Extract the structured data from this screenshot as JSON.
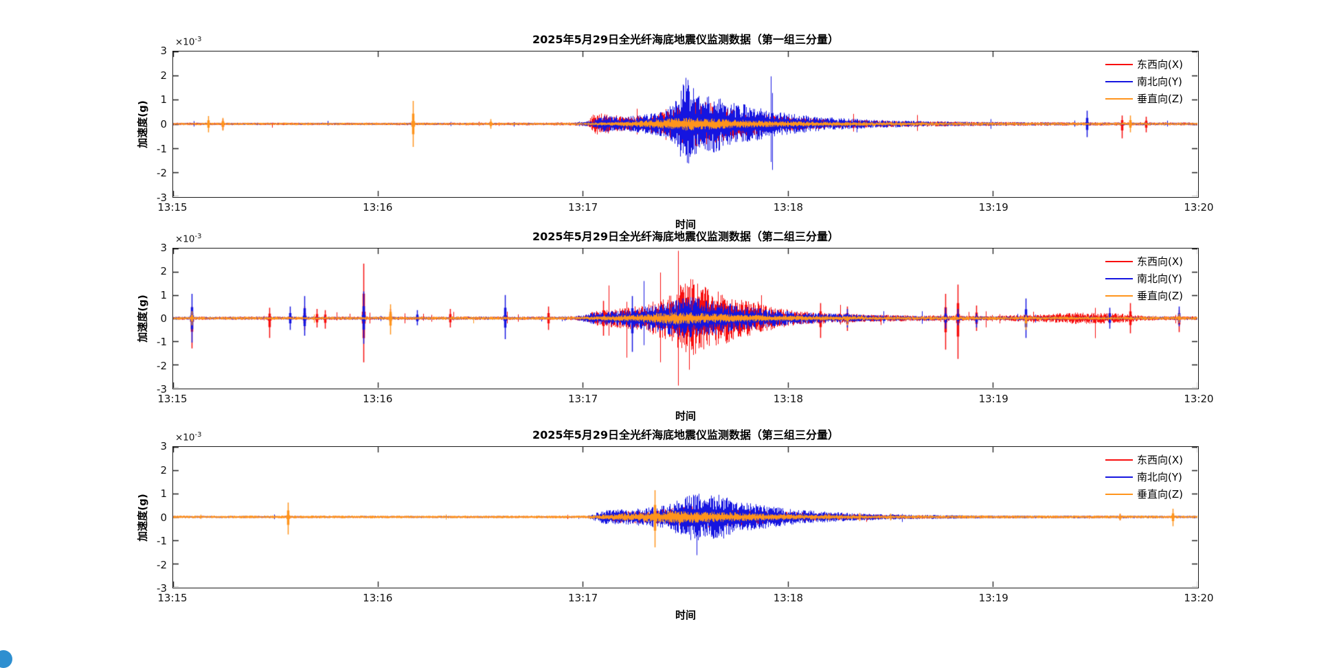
{
  "figure": {
    "background": "#ffffff",
    "type": "matlab-style stacked seismic waveform figure, 3 subplots sharing identical axes"
  },
  "axis": {
    "xlabel": "时间",
    "ylabel": "加速度(g)",
    "offset_base": "×10",
    "offset_exp": "-3",
    "x_ticks": [
      "13:15",
      "13:16",
      "13:17",
      "13:18",
      "13:19",
      "13:20"
    ],
    "y_ticks": [
      "3",
      "2",
      "1",
      "0",
      "-1",
      "-2",
      "-3"
    ],
    "ylim": [
      -0.003,
      0.003
    ],
    "grid": false
  },
  "legend": {
    "position": "top-right inside axes, no box",
    "items": [
      {
        "label": "东西向(X)",
        "color": "#f80e0e"
      },
      {
        "label": "南北向(Y)",
        "color": "#1515e0"
      },
      {
        "label": "垂直向(Z)",
        "color": "#ff941c"
      }
    ]
  },
  "chart_data": [
    {
      "type": "line",
      "title": "2025年5月29日全光纤海底地震仪监测数据（第一组三分量）",
      "xlabel": "时间",
      "ylabel": "加速度(g)",
      "x_range_minutes": [
        0,
        5
      ],
      "x_tick_times": [
        "13:15",
        "13:16",
        "13:17",
        "13:18",
        "13:19",
        "13:20"
      ],
      "ylim_e3": [
        -3,
        3
      ],
      "series": [
        {
          "name": "东西向(X)",
          "color": "#f80e0e",
          "noise_spike_p": 0.004,
          "noise_spike_mult": 3,
          "envelope": [
            [
              0,
              0.05
            ],
            [
              1.0,
              0.05
            ],
            [
              1.9,
              0.06
            ],
            [
              2.02,
              0.08
            ],
            [
              2.06,
              0.5
            ],
            [
              2.12,
              0.42
            ],
            [
              2.2,
              0.3
            ],
            [
              2.3,
              0.35
            ],
            [
              2.4,
              0.5
            ],
            [
              2.5,
              0.85
            ],
            [
              2.58,
              1.0
            ],
            [
              2.65,
              0.8
            ],
            [
              2.75,
              0.6
            ],
            [
              2.85,
              0.45
            ],
            [
              3.0,
              0.3
            ],
            [
              3.2,
              0.2
            ],
            [
              3.5,
              0.13
            ],
            [
              3.9,
              0.09
            ],
            [
              4.4,
              0.07
            ],
            [
              5,
              0.06
            ]
          ],
          "spikes": [
            [
              0.24,
              0.2,
              0.25
            ],
            [
              4.63,
              0.35,
              0.6
            ],
            [
              4.75,
              0.3,
              0.35
            ]
          ]
        },
        {
          "name": "南北向(Y)",
          "color": "#1515e0",
          "noise_spike_p": 0.004,
          "noise_spike_mult": 3,
          "envelope": [
            [
              0,
              0.04
            ],
            [
              1.95,
              0.04
            ],
            [
              2.05,
              0.15
            ],
            [
              2.1,
              0.35
            ],
            [
              2.2,
              0.3
            ],
            [
              2.3,
              0.4
            ],
            [
              2.4,
              0.55
            ],
            [
              2.46,
              1.1
            ],
            [
              2.5,
              2.05
            ],
            [
              2.54,
              1.5
            ],
            [
              2.58,
              1.0
            ],
            [
              2.64,
              1.3
            ],
            [
              2.7,
              0.9
            ],
            [
              2.8,
              0.8
            ],
            [
              2.9,
              0.6
            ],
            [
              3.0,
              0.45
            ],
            [
              3.15,
              0.3
            ],
            [
              3.35,
              0.2
            ],
            [
              3.7,
              0.1
            ],
            [
              4.2,
              0.06
            ],
            [
              5,
              0.05
            ]
          ],
          "spikes": [
            [
              4.46,
              0.55,
              0.55
            ]
          ]
        },
        {
          "name": "垂直向(Z)",
          "color": "#ff941c",
          "noise_spike_p": 0.003,
          "noise_spike_mult": 2,
          "envelope": [
            [
              0,
              0.05
            ],
            [
              2.0,
              0.05
            ],
            [
              2.2,
              0.1
            ],
            [
              2.35,
              0.18
            ],
            [
              2.5,
              0.28
            ],
            [
              2.65,
              0.22
            ],
            [
              2.85,
              0.15
            ],
            [
              3.1,
              0.1
            ],
            [
              3.6,
              0.07
            ],
            [
              5,
              0.05
            ]
          ],
          "spikes": [
            [
              0.17,
              0.33,
              0.35
            ],
            [
              0.24,
              0.25,
              0.28
            ],
            [
              1.17,
              0.95,
              0.95
            ],
            [
              1.55,
              0.2,
              0.2
            ],
            [
              4.67,
              0.35,
              0.35
            ]
          ]
        }
      ]
    },
    {
      "type": "line",
      "title": "2025年5月29日全光纤海底地震仪监测数据（第二组三分量）",
      "xlabel": "时间",
      "ylabel": "加速度(g)",
      "x_range_minutes": [
        0,
        5
      ],
      "x_tick_times": [
        "13:15",
        "13:16",
        "13:17",
        "13:18",
        "13:19",
        "13:20"
      ],
      "ylim_e3": [
        -3,
        3
      ],
      "series": [
        {
          "name": "东西向(X)",
          "color": "#f80e0e",
          "noise_spike_p": 0.02,
          "noise_spike_mult": 4,
          "envelope": [
            [
              0,
              0.07
            ],
            [
              1.9,
              0.07
            ],
            [
              2.0,
              0.12
            ],
            [
              2.05,
              0.3
            ],
            [
              2.15,
              0.4
            ],
            [
              2.25,
              0.5
            ],
            [
              2.35,
              0.75
            ],
            [
              2.42,
              1.0
            ],
            [
              2.47,
              1.4
            ],
            [
              2.52,
              1.9
            ],
            [
              2.56,
              1.5
            ],
            [
              2.62,
              1.25
            ],
            [
              2.7,
              1.1
            ],
            [
              2.78,
              0.85
            ],
            [
              2.85,
              0.65
            ],
            [
              2.95,
              0.45
            ],
            [
              3.05,
              0.3
            ],
            [
              3.2,
              0.22
            ],
            [
              3.45,
              0.15
            ],
            [
              3.7,
              0.12
            ],
            [
              4.0,
              0.1
            ],
            [
              4.25,
              0.18
            ],
            [
              4.4,
              0.25
            ],
            [
              4.6,
              0.22
            ],
            [
              4.75,
              0.1
            ],
            [
              5,
              0.08
            ]
          ],
          "spikes": [
            [
              0.09,
              0.5,
              1.3
            ],
            [
              0.47,
              0.45,
              0.85
            ],
            [
              0.64,
              0.5,
              0.5
            ],
            [
              0.7,
              0.4,
              0.4
            ],
            [
              0.74,
              0.35,
              0.45
            ],
            [
              0.93,
              2.35,
              1.9
            ],
            [
              1.06,
              0.4,
              0.3
            ],
            [
              1.35,
              0.4,
              0.4
            ],
            [
              1.83,
              0.5,
              0.5
            ],
            [
              2.1,
              0.75,
              0.75
            ],
            [
              3.16,
              0.65,
              0.85
            ],
            [
              3.29,
              0.5,
              0.55
            ],
            [
              3.77,
              1.05,
              1.35
            ],
            [
              3.83,
              1.45,
              1.75
            ],
            [
              3.92,
              0.55,
              0.55
            ],
            [
              4.16,
              0.3,
              0.3
            ],
            [
              4.67,
              0.65,
              0.65
            ],
            [
              4.91,
              0.35,
              0.6
            ]
          ]
        },
        {
          "name": "南北向(Y)",
          "color": "#1515e0",
          "noise_spike_p": 0.012,
          "noise_spike_mult": 3.5,
          "envelope": [
            [
              0,
              0.06
            ],
            [
              1.95,
              0.06
            ],
            [
              2.05,
              0.25
            ],
            [
              2.2,
              0.35
            ],
            [
              2.3,
              0.5
            ],
            [
              2.4,
              0.7
            ],
            [
              2.5,
              0.95
            ],
            [
              2.6,
              0.8
            ],
            [
              2.7,
              0.65
            ],
            [
              2.8,
              0.5
            ],
            [
              2.95,
              0.35
            ],
            [
              3.1,
              0.25
            ],
            [
              3.3,
              0.17
            ],
            [
              3.6,
              0.1
            ],
            [
              4.0,
              0.08
            ],
            [
              5,
              0.06
            ]
          ],
          "spikes": [
            [
              0.09,
              1.05,
              1.05
            ],
            [
              0.57,
              0.5,
              0.5
            ],
            [
              0.64,
              0.95,
              0.75
            ],
            [
              0.93,
              1.15,
              1.1
            ],
            [
              1.19,
              0.35,
              0.3
            ],
            [
              1.62,
              1.0,
              0.9
            ],
            [
              2.24,
              0.95,
              1.45
            ],
            [
              3.29,
              0.4,
              0.4
            ],
            [
              3.77,
              0.45,
              0.45
            ],
            [
              3.83,
              0.4,
              0.3
            ],
            [
              3.92,
              0.2,
              0.4
            ],
            [
              4.16,
              0.85,
              0.85
            ],
            [
              4.57,
              0.45,
              0.45
            ],
            [
              4.91,
              0.5,
              0.35
            ]
          ]
        },
        {
          "name": "垂直向(Z)",
          "color": "#ff941c",
          "noise_spike_p": 0.006,
          "noise_spike_mult": 2.5,
          "envelope": [
            [
              0,
              0.06
            ],
            [
              2.0,
              0.07
            ],
            [
              2.25,
              0.15
            ],
            [
              2.45,
              0.28
            ],
            [
              2.6,
              0.22
            ],
            [
              2.8,
              0.16
            ],
            [
              3.0,
              0.12
            ],
            [
              3.4,
              0.08
            ],
            [
              5,
              0.07
            ]
          ],
          "spikes": [
            [
              0.09,
              0.3,
              0.3
            ],
            [
              1.06,
              0.6,
              0.7
            ],
            [
              3.29,
              0.1,
              0.3
            ],
            [
              4.16,
              0.15,
              0.5
            ],
            [
              4.91,
              0.2,
              0.2
            ]
          ]
        }
      ]
    },
    {
      "type": "line",
      "title": "2025年5月29日全光纤海底地震仪监测数据（第三组三分量）",
      "xlabel": "时间",
      "ylabel": "加速度(g)",
      "x_range_minutes": [
        0,
        5
      ],
      "x_tick_times": [
        "13:15",
        "13:16",
        "13:17",
        "13:18",
        "13:19",
        "13:20"
      ],
      "ylim_e3": [
        -3,
        3
      ],
      "series": [
        {
          "name": "东西向(X)",
          "color": "#f80e0e",
          "noise_spike_p": 0.003,
          "noise_spike_mult": 2.5,
          "envelope": [
            [
              0,
              0.04
            ],
            [
              2.05,
              0.04
            ],
            [
              2.15,
              0.25
            ],
            [
              2.35,
              0.3
            ],
            [
              2.5,
              0.45
            ],
            [
              2.6,
              0.5
            ],
            [
              2.7,
              0.4
            ],
            [
              2.85,
              0.3
            ],
            [
              3.0,
              0.22
            ],
            [
              3.2,
              0.15
            ],
            [
              3.5,
              0.09
            ],
            [
              4.0,
              0.05
            ],
            [
              5,
              0.04
            ]
          ],
          "spikes": [
            [
              4.62,
              0.12,
              0.15
            ]
          ]
        },
        {
          "name": "南北向(Y)",
          "color": "#1515e0",
          "noise_spike_p": 0.003,
          "noise_spike_mult": 2.5,
          "envelope": [
            [
              0,
              0.04
            ],
            [
              2.02,
              0.04
            ],
            [
              2.1,
              0.3
            ],
            [
              2.25,
              0.35
            ],
            [
              2.4,
              0.5
            ],
            [
              2.48,
              0.8
            ],
            [
              2.55,
              1.1
            ],
            [
              2.6,
              0.85
            ],
            [
              2.66,
              1.05
            ],
            [
              2.75,
              0.65
            ],
            [
              2.9,
              0.5
            ],
            [
              3.0,
              0.35
            ],
            [
              3.15,
              0.25
            ],
            [
              3.35,
              0.15
            ],
            [
              3.6,
              0.1
            ],
            [
              4.0,
              0.06
            ],
            [
              5,
              0.05
            ]
          ],
          "spikes": []
        },
        {
          "name": "垂直向(Z)",
          "color": "#ff941c",
          "noise_spike_p": 0.004,
          "noise_spike_mult": 2,
          "envelope": [
            [
              0,
              0.06
            ],
            [
              2.0,
              0.06
            ],
            [
              2.25,
              0.18
            ],
            [
              2.45,
              0.28
            ],
            [
              2.6,
              0.24
            ],
            [
              2.9,
              0.15
            ],
            [
              3.2,
              0.1
            ],
            [
              3.6,
              0.07
            ],
            [
              5,
              0.06
            ]
          ],
          "spikes": [
            [
              0.56,
              0.62,
              0.75
            ],
            [
              2.35,
              1.15,
              1.3
            ],
            [
              3.2,
              0.15,
              0.15
            ],
            [
              3.35,
              0.18,
              0.18
            ],
            [
              3.5,
              0.15,
              0.15
            ],
            [
              4.62,
              0.15,
              0.15
            ],
            [
              4.88,
              0.35,
              0.4
            ]
          ]
        }
      ]
    }
  ]
}
